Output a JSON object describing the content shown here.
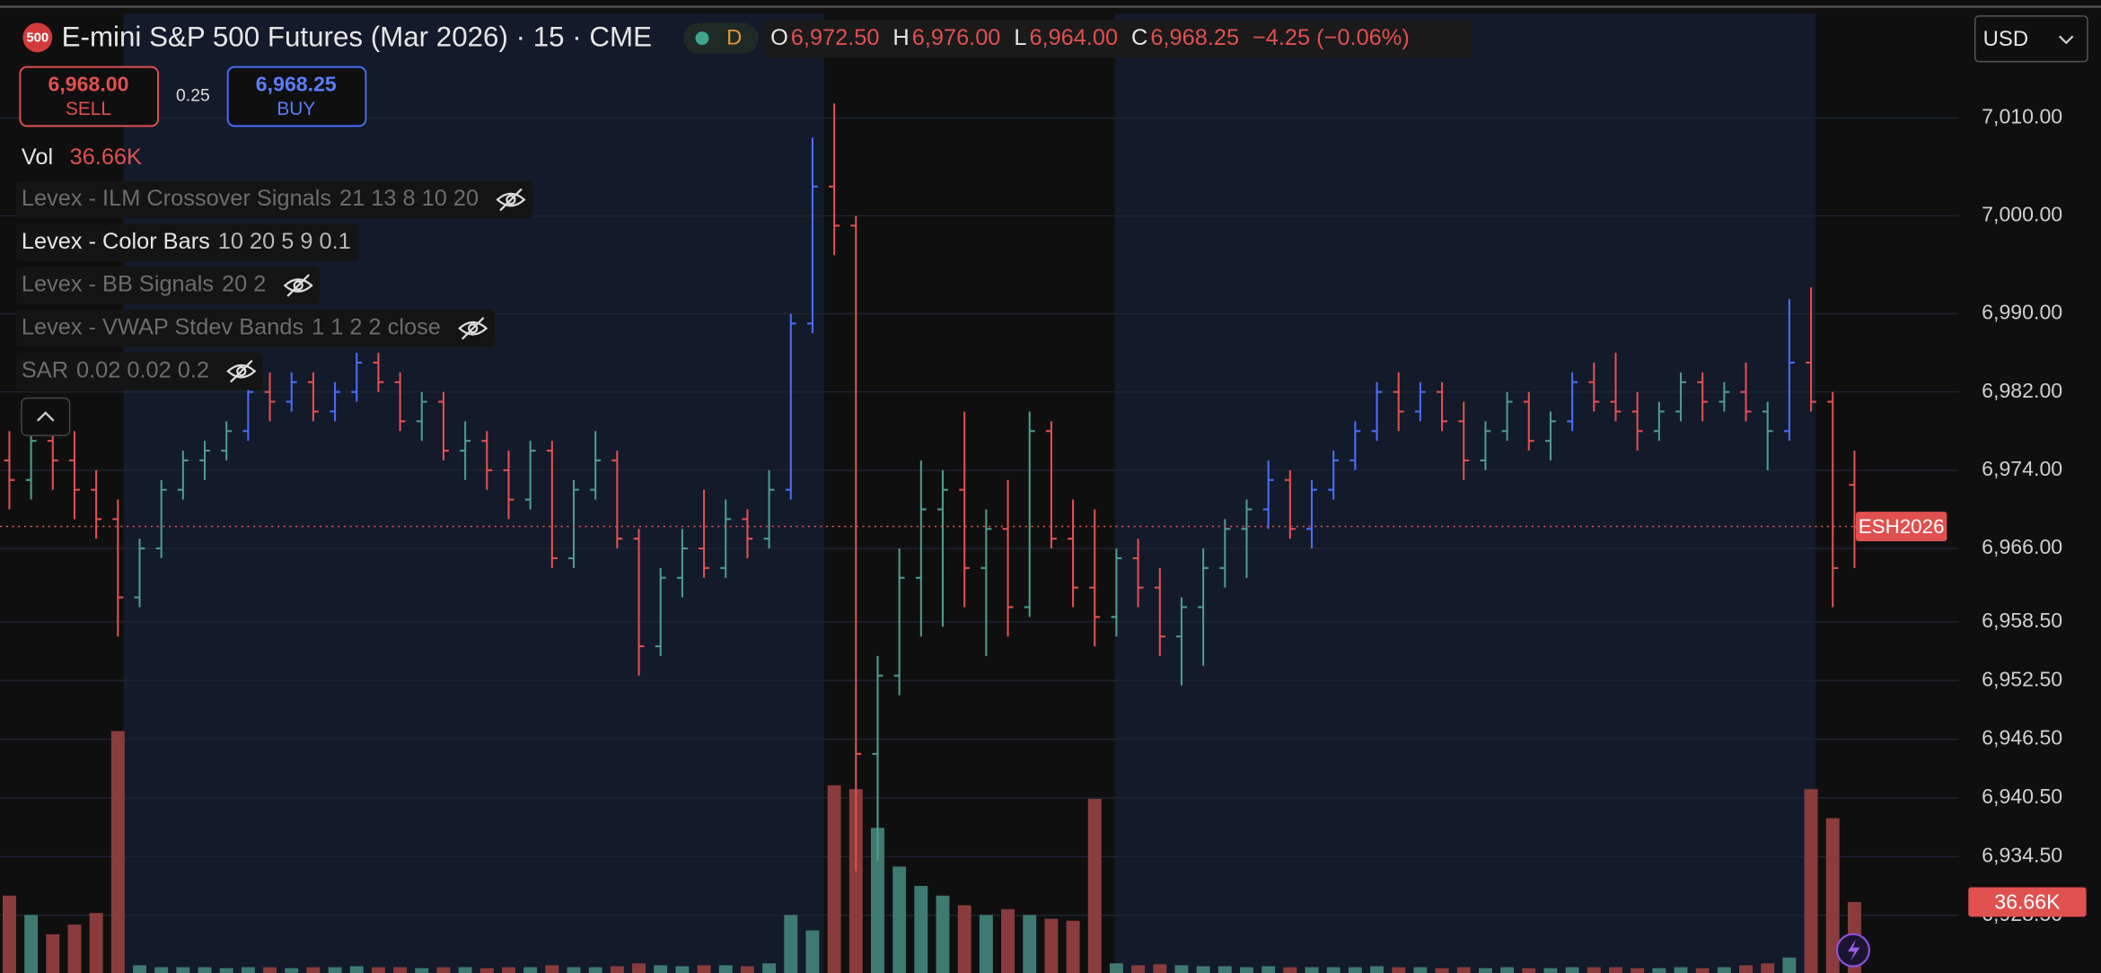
{
  "header": {
    "symbol_badge": "500",
    "title": "E-mini S&P 500 Futures (Mar 2026) · 15 · CME",
    "session_badge": "D",
    "ohlc": [
      {
        "key": "O",
        "value": "6,972.50"
      },
      {
        "key": "H",
        "value": "6,976.00"
      },
      {
        "key": "L",
        "value": "6,964.00"
      },
      {
        "key": "C",
        "value": "6,968.25"
      }
    ],
    "change": "−4.25 (−0.06%)"
  },
  "trade": {
    "sell_price": "6,968.00",
    "sell_label": "SELL",
    "spread": "0.25",
    "buy_price": "6,968.25",
    "buy_label": "BUY"
  },
  "volume_legend": {
    "label": "Vol",
    "value": "36.66K"
  },
  "indicators": [
    {
      "name": "Levex - ILM Crossover Signals",
      "params": "21 13 8 10 20",
      "hidden": true
    },
    {
      "name": "Levex - Color Bars",
      "params": "10 20 5 9 0.1",
      "hidden": false
    },
    {
      "name": "Levex - BB Signals",
      "params": "20 2",
      "hidden": true
    },
    {
      "name": "Levex - VWAP Stdev Bands",
      "params": "1 1 2 2 close",
      "hidden": true
    },
    {
      "name": "SAR",
      "params": "0.02 0.02 0.2",
      "hidden": true
    }
  ],
  "currency": "USD",
  "chart_data": {
    "type": "ohlc",
    "open": [
      6975,
      6973,
      6977,
      6975,
      6972,
      6969,
      6961,
      6966,
      6972,
      6975,
      6976,
      6978,
      6982,
      6981,
      6983,
      6980,
      6982,
      6985,
      6983,
      6979,
      6981,
      6976,
      6977,
      6974,
      6971,
      6976,
      6965,
      6972,
      6975,
      6967,
      6956,
      6963,
      6966,
      6964,
      6969,
      6967,
      6972,
      6989,
      7003,
      6999,
      6945,
      6953,
      6963,
      6970,
      6972,
      6964,
      6968,
      6960,
      6978,
      6967,
      6962,
      6959,
      6965,
      6962,
      6957,
      6960,
      6964,
      6968,
      6970,
      6973,
      6968,
      6972,
      6975,
      6978,
      6982,
      6980,
      6982,
      6979,
      6975,
      6978,
      6981,
      6977,
      6979,
      6983,
      6981,
      6980,
      6978,
      6980,
      6983,
      6981,
      6982,
      6980,
      6978,
      6985,
      6981,
      6972.5
    ],
    "high": [
      6978,
      6979,
      6980,
      6978,
      6974,
      6971,
      6967,
      6973,
      6976,
      6977,
      6979,
      6983,
      6984,
      6984,
      6984,
      6983,
      6986,
      6986,
      6984,
      6982,
      6982,
      6979,
      6978,
      6976,
      6977,
      6977,
      6973,
      6978,
      6976,
      6968,
      6964,
      6968,
      6972,
      6971,
      6970,
      6974,
      6990,
      7008,
      7011.5,
      7000,
      6955,
      6966,
      6975,
      6974,
      6980,
      6970,
      6973,
      6980,
      6979,
      6971,
      6970,
      6966,
      6967,
      6964,
      6961,
      6966,
      6969,
      6971,
      6975,
      6974,
      6973,
      6976,
      6979,
      6983,
      6984,
      6983,
      6983,
      6981,
      6979,
      6982,
      6982,
      6980,
      6984,
      6985,
      6986,
      6982,
      6981,
      6984,
      6984,
      6983,
      6985,
      6981,
      6991.5,
      6992.7,
      6982,
      6976
    ],
    "low": [
      6970,
      6971,
      6972,
      6969,
      6967,
      6957,
      6960,
      6965,
      6971,
      6973,
      6975,
      6977,
      6979,
      6980,
      6979,
      6979,
      6981,
      6982,
      6978,
      6977,
      6975,
      6973,
      6972,
      6969,
      6970,
      6964,
      6964,
      6971,
      6966,
      6953,
      6955,
      6961,
      6963,
      6963,
      6965,
      6966,
      6971,
      6988,
      6996,
      6933,
      6934,
      6951,
      6957,
      6958,
      6960,
      6955,
      6957,
      6959,
      6966,
      6960,
      6956,
      6957,
      6960,
      6955,
      6952,
      6954,
      6962,
      6963,
      6968,
      6967,
      6966,
      6971,
      6974,
      6977,
      6978,
      6979,
      6978,
      6973,
      6974,
      6977,
      6976,
      6975,
      6978,
      6980,
      6979,
      6976,
      6977,
      6979,
      6979,
      6980,
      6979,
      6974,
      6977,
      6980,
      6960,
      6964
    ],
    "close": [
      6973,
      6977,
      6975,
      6972,
      6969,
      6961,
      6966,
      6972,
      6975,
      6976,
      6978,
      6982,
      6981,
      6983,
      6980,
      6982,
      6985,
      6983,
      6979,
      6981,
      6976,
      6977,
      6974,
      6971,
      6976,
      6965,
      6972,
      6975,
      6967,
      6956,
      6963,
      6966,
      6964,
      6969,
      6967,
      6972,
      6989,
      7003,
      6999,
      6945,
      6953,
      6963,
      6970,
      6972,
      6964,
      6968,
      6960,
      6978,
      6967,
      6962,
      6959,
      6965,
      6962,
      6957,
      6960,
      6964,
      6968,
      6970,
      6973,
      6968,
      6972,
      6975,
      6978,
      6982,
      6980,
      6982,
      6979,
      6975,
      6978,
      6981,
      6977,
      6979,
      6983,
      6981,
      6980,
      6978,
      6980,
      6983,
      6981,
      6982,
      6980,
      6978,
      6985,
      6981,
      6964,
      6968.25
    ],
    "volume": [
      40000,
      30000,
      20000,
      25000,
      31000,
      125000,
      4000,
      3000,
      3000,
      3000,
      2500,
      3000,
      3000,
      2500,
      3000,
      3000,
      3500,
      3000,
      3000,
      2500,
      3000,
      3000,
      2500,
      3000,
      3000,
      4000,
      3000,
      3000,
      3500,
      5000,
      4000,
      3500,
      4000,
      4000,
      3500,
      5000,
      30000,
      22000,
      97000,
      95000,
      75000,
      55000,
      45000,
      40000,
      35000,
      30000,
      33000,
      30000,
      28000,
      27000,
      90000,
      5000,
      4000,
      4500,
      4000,
      3500,
      3500,
      3000,
      3500,
      3000,
      3000,
      3000,
      3000,
      3500,
      3000,
      3000,
      2500,
      3000,
      2500,
      3000,
      2500,
      2500,
      3000,
      3000,
      3000,
      2500,
      2500,
      3000,
      2500,
      3000,
      4000,
      5000,
      8000,
      95000,
      80000,
      36660
    ],
    "bar_colors": [
      "#e0504f",
      "#4c9b8c",
      "#e0504f",
      "#e0504f",
      "#e0504f",
      "#e0504f",
      "#4c9b8c",
      "#4c9b8c",
      "#4c9b8c",
      "#4c9b8c",
      "#4c9b8c",
      "#4a6cf7",
      "#e0504f",
      "#4a6cf7",
      "#e0504f",
      "#4a6cf7",
      "#4a6cf7",
      "#e0504f",
      "#e0504f",
      "#4c9b8c",
      "#e0504f",
      "#4c9b8c",
      "#e0504f",
      "#e0504f",
      "#4c9b8c",
      "#e0504f",
      "#4c9b8c",
      "#4c9b8c",
      "#e0504f",
      "#e0504f",
      "#4c9b8c",
      "#4c9b8c",
      "#e0504f",
      "#4c9b8c",
      "#e0504f",
      "#4c9b8c",
      "#4a6cf7",
      "#4a6cf7",
      "#e0504f",
      "#e0504f",
      "#4c9b8c",
      "#4c9b8c",
      "#4c9b8c",
      "#4c9b8c",
      "#e0504f",
      "#4c9b8c",
      "#e0504f",
      "#4c9b8c",
      "#e0504f",
      "#e0504f",
      "#e0504f",
      "#4c9b8c",
      "#e0504f",
      "#e0504f",
      "#4c9b8c",
      "#4c9b8c",
      "#4c9b8c",
      "#4c9b8c",
      "#4a6cf7",
      "#e0504f",
      "#4a6cf7",
      "#4a6cf7",
      "#4a6cf7",
      "#4a6cf7",
      "#e0504f",
      "#4a6cf7",
      "#e0504f",
      "#e0504f",
      "#4c9b8c",
      "#4c9b8c",
      "#e0504f",
      "#4c9b8c",
      "#4a6cf7",
      "#e0504f",
      "#e0504f",
      "#e0504f",
      "#4c9b8c",
      "#4c9b8c",
      "#e0504f",
      "#4c9b8c",
      "#e0504f",
      "#4c9b8c",
      "#4a6cf7",
      "#e0504f",
      "#e0504f",
      "#e0504f"
    ],
    "up_volume_color": "#3f7a72",
    "down_volume_color": "#8a3c3d",
    "ylim": [
      6922.6,
      7020.7
    ],
    "yticks": [
      {
        "value": 7010,
        "label": "7,010.00"
      },
      {
        "value": 7000,
        "label": "7,000.00"
      },
      {
        "value": 6990,
        "label": "6,990.00"
      },
      {
        "value": 6982,
        "label": "6,982.00"
      },
      {
        "value": 6974,
        "label": "6,974.00"
      },
      {
        "value": 6966,
        "label": "6,966.00"
      },
      {
        "value": 6958.5,
        "label": "6,958.50"
      },
      {
        "value": 6952.5,
        "label": "6,952.50"
      },
      {
        "value": 6946.5,
        "label": "6,946.50"
      },
      {
        "value": 6940.5,
        "label": "6,940.50"
      },
      {
        "value": 6934.5,
        "label": "6,934.50"
      },
      {
        "value": 6928.5,
        "label": "6,928.50"
      }
    ],
    "volume_lim": [
      0,
      250000
    ],
    "grid": true,
    "price_label": "ESH2026",
    "price_color": "#e0504f",
    "volume_label": "36.66K"
  }
}
